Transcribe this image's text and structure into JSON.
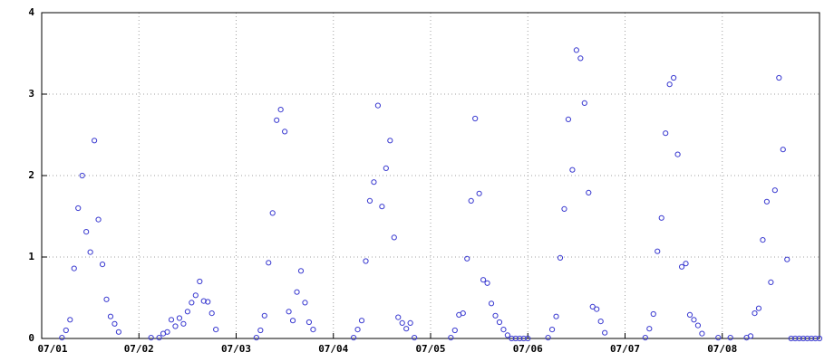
{
  "chart_data": {
    "type": "scatter",
    "x": [
      5,
      6,
      7,
      8,
      9,
      10,
      11,
      12,
      13,
      14,
      15,
      16,
      17,
      18,
      19,
      27,
      29,
      30,
      31,
      32,
      33,
      34,
      35,
      36,
      37,
      38,
      39,
      40,
      41,
      42,
      43,
      53,
      54,
      55,
      56,
      57,
      58,
      59,
      60,
      61,
      62,
      63,
      64,
      65,
      66,
      67,
      77,
      78,
      79,
      80,
      81,
      82,
      83,
      84,
      85,
      86,
      87,
      88,
      89,
      90,
      91,
      92,
      101,
      102,
      103,
      104,
      105,
      106,
      107,
      108,
      109,
      110,
      111,
      112,
      113,
      114,
      115,
      116,
      117,
      118,
      119,
      120,
      125,
      126,
      127,
      128,
      129,
      130,
      131,
      132,
      133,
      134,
      135,
      136,
      137,
      138,
      139,
      149,
      150,
      151,
      152,
      153,
      154,
      155,
      156,
      157,
      158,
      159,
      160,
      161,
      162,
      163,
      167,
      170,
      174,
      175,
      176,
      177,
      178,
      179,
      180,
      181,
      182,
      183,
      184,
      185,
      186,
      187,
      188,
      189,
      190,
      191,
      192
    ],
    "values": [
      0.01,
      0.1,
      0.23,
      0.86,
      1.6,
      2.0,
      1.31,
      1.06,
      2.43,
      1.46,
      0.91,
      0.48,
      0.27,
      0.18,
      0.08,
      0.01,
      0.01,
      0.06,
      0.08,
      0.23,
      0.15,
      0.25,
      0.18,
      0.33,
      0.44,
      0.53,
      0.7,
      0.46,
      0.45,
      0.31,
      0.11,
      0.01,
      0.1,
      0.28,
      0.93,
      1.54,
      2.68,
      2.81,
      2.54,
      0.33,
      0.22,
      0.57,
      0.83,
      0.44,
      0.2,
      0.11,
      0.01,
      0.11,
      0.22,
      0.95,
      1.69,
      1.92,
      2.86,
      1.62,
      2.09,
      2.43,
      1.24,
      0.26,
      0.19,
      0.12,
      0.19,
      0.01,
      0.01,
      0.1,
      0.29,
      0.31,
      0.98,
      1.69,
      2.7,
      1.78,
      0.72,
      0.68,
      0.43,
      0.28,
      0.2,
      0.11,
      0.04,
      0,
      0,
      0,
      0,
      0,
      0.01,
      0.11,
      0.27,
      0.99,
      1.59,
      2.69,
      2.07,
      3.54,
      3.44,
      2.89,
      1.79,
      0.39,
      0.36,
      0.21,
      0.07,
      0.01,
      0.12,
      0.3,
      1.07,
      1.48,
      2.52,
      3.12,
      3.2,
      2.26,
      0.88,
      0.92,
      0.29,
      0.23,
      0.16,
      0.06,
      0.01,
      0.01,
      0.01,
      0.03,
      0.31,
      0.37,
      1.21,
      1.68,
      0.69,
      1.82,
      3.2,
      2.32,
      0.97,
      0,
      0,
      0,
      0,
      0,
      0,
      0,
      0
    ],
    "color": "#3a3ad0",
    "xlim": [
      0,
      192
    ],
    "xticks": [
      {
        "value": 0,
        "label": "07/01"
      },
      {
        "value": 24,
        "label": "07/02"
      },
      {
        "value": 48,
        "label": "07/03"
      },
      {
        "value": 72,
        "label": "07/04"
      },
      {
        "value": 96,
        "label": "07/05"
      },
      {
        "value": 120,
        "label": "07/06"
      },
      {
        "value": 144,
        "label": "07/07"
      },
      {
        "value": 168,
        "label": "07/08"
      }
    ],
    "ylim": [
      0,
      4
    ],
    "yticks": [
      0,
      1,
      2,
      3,
      4
    ],
    "grid": true
  }
}
